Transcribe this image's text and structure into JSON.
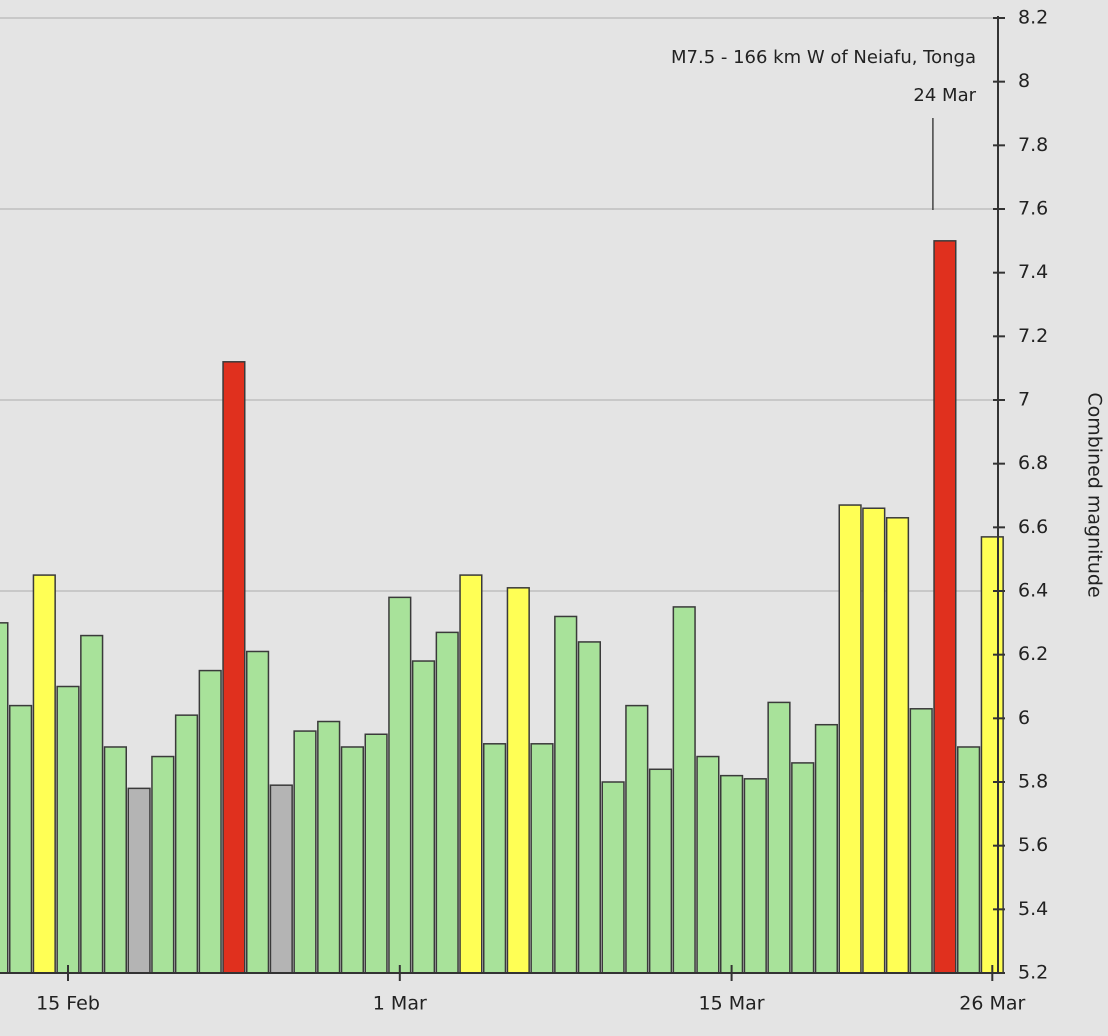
{
  "chart_data": {
    "type": "bar",
    "y_axis_label": "Combined magnitude",
    "categories": [
      null,
      null,
      null,
      "15 Feb",
      null,
      null,
      null,
      null,
      null,
      null,
      null,
      null,
      null,
      null,
      null,
      null,
      null,
      "1 Mar",
      null,
      null,
      null,
      null,
      null,
      null,
      null,
      null,
      null,
      null,
      null,
      null,
      null,
      "15 Mar",
      null,
      null,
      null,
      null,
      null,
      null,
      null,
      null,
      null,
      null,
      "26 Mar"
    ],
    "values": [
      6.3,
      6.04,
      6.45,
      6.1,
      6.26,
      5.91,
      5.78,
      5.88,
      6.01,
      6.15,
      7.12,
      6.21,
      5.79,
      5.96,
      5.99,
      5.91,
      5.95,
      6.38,
      6.18,
      6.27,
      6.45,
      5.92,
      6.41,
      5.92,
      6.32,
      6.24,
      5.8,
      6.04,
      5.84,
      6.35,
      5.88,
      5.82,
      5.81,
      6.05,
      5.86,
      5.98,
      6.67,
      6.66,
      6.63,
      6.03,
      7.5,
      5.91,
      6.57
    ],
    "colors": [
      "#a8e29a",
      "#a8e29a",
      "#ffff55",
      "#a8e29a",
      "#a8e29a",
      "#a8e29a",
      "#b4b4b4",
      "#a8e29a",
      "#a8e29a",
      "#a8e29a",
      "#e0301e",
      "#a8e29a",
      "#b4b4b4",
      "#a8e29a",
      "#a8e29a",
      "#a8e29a",
      "#a8e29a",
      "#a8e29a",
      "#a8e29a",
      "#a8e29a",
      "#ffff55",
      "#a8e29a",
      "#ffff55",
      "#a8e29a",
      "#a8e29a",
      "#a8e29a",
      "#a8e29a",
      "#a8e29a",
      "#a8e29a",
      "#a8e29a",
      "#a8e29a",
      "#a8e29a",
      "#a8e29a",
      "#a8e29a",
      "#a8e29a",
      "#a8e29a",
      "#ffff55",
      "#ffff55",
      "#ffff55",
      "#a8e29a",
      "#e0301e",
      "#a8e29a",
      "#ffff55"
    ],
    "ylim": [
      5.2,
      8.2
    ],
    "yticks": [
      5.2,
      5.4,
      5.6,
      5.8,
      6,
      6.2,
      6.4,
      6.6,
      6.8,
      7,
      7.2,
      7.4,
      7.6,
      7.8,
      8,
      8.2
    ],
    "grid_values": [
      6.4,
      7,
      7.6,
      8.2
    ],
    "annotation": {
      "text": "M7.5 - 166 km W of Neiafu, Tonga",
      "date": "24 Mar"
    }
  }
}
